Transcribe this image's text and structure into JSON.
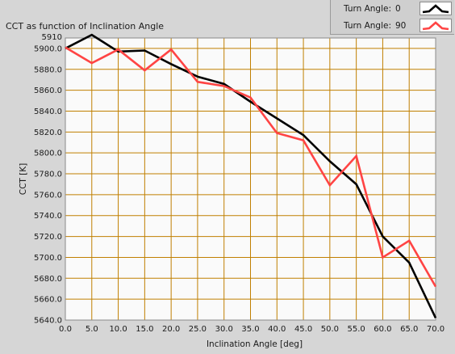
{
  "chart_data": {
    "type": "line",
    "title": "CCT as function of Inclination Angle",
    "xlabel": "Inclination Angle [deg]",
    "ylabel": "CCT [K]",
    "xlim": [
      0,
      70
    ],
    "ylim": [
      5640,
      5910
    ],
    "x_ticks": [
      "0.0",
      "5.0",
      "10.0",
      "15.0",
      "20.0",
      "25.0",
      "30.0",
      "35.0",
      "40.0",
      "45.0",
      "50.0",
      "55.0",
      "60.0",
      "65.0",
      "70.0"
    ],
    "y_ticks": [
      "5640.0",
      "5660.0",
      "5680.0",
      "5700.0",
      "5720.0",
      "5740.0",
      "5760.0",
      "5780.0",
      "5800.0",
      "5820.0",
      "5840.0",
      "5860.0",
      "5880.0",
      "5900.0"
    ],
    "y_top_tick_value": "5910",
    "grid": true,
    "legend_position": "top-right",
    "x": [
      0,
      5,
      10,
      15,
      20,
      25,
      30,
      35,
      40,
      45,
      50,
      55,
      60,
      65,
      70
    ],
    "series": [
      {
        "name": "Turn Angle:",
        "legend_value": "0",
        "color": "#000000",
        "values": [
          5900,
          5913,
          5897,
          5898,
          5885,
          5873,
          5866,
          5849,
          5833,
          5817,
          5792,
          5770,
          5720,
          5695,
          5642
        ]
      },
      {
        "name": "Turn Angle:",
        "legend_value": "90",
        "color": "#ff4444",
        "values": [
          5901,
          5886,
          5899,
          5879,
          5899,
          5868,
          5864,
          5853,
          5819,
          5812,
          5769,
          5797,
          5700,
          5716,
          5672
        ]
      }
    ],
    "colors": {
      "plot_bg": "#fafafa",
      "grid": "#c07f00",
      "frame_bg": "#d6d6d6"
    }
  }
}
